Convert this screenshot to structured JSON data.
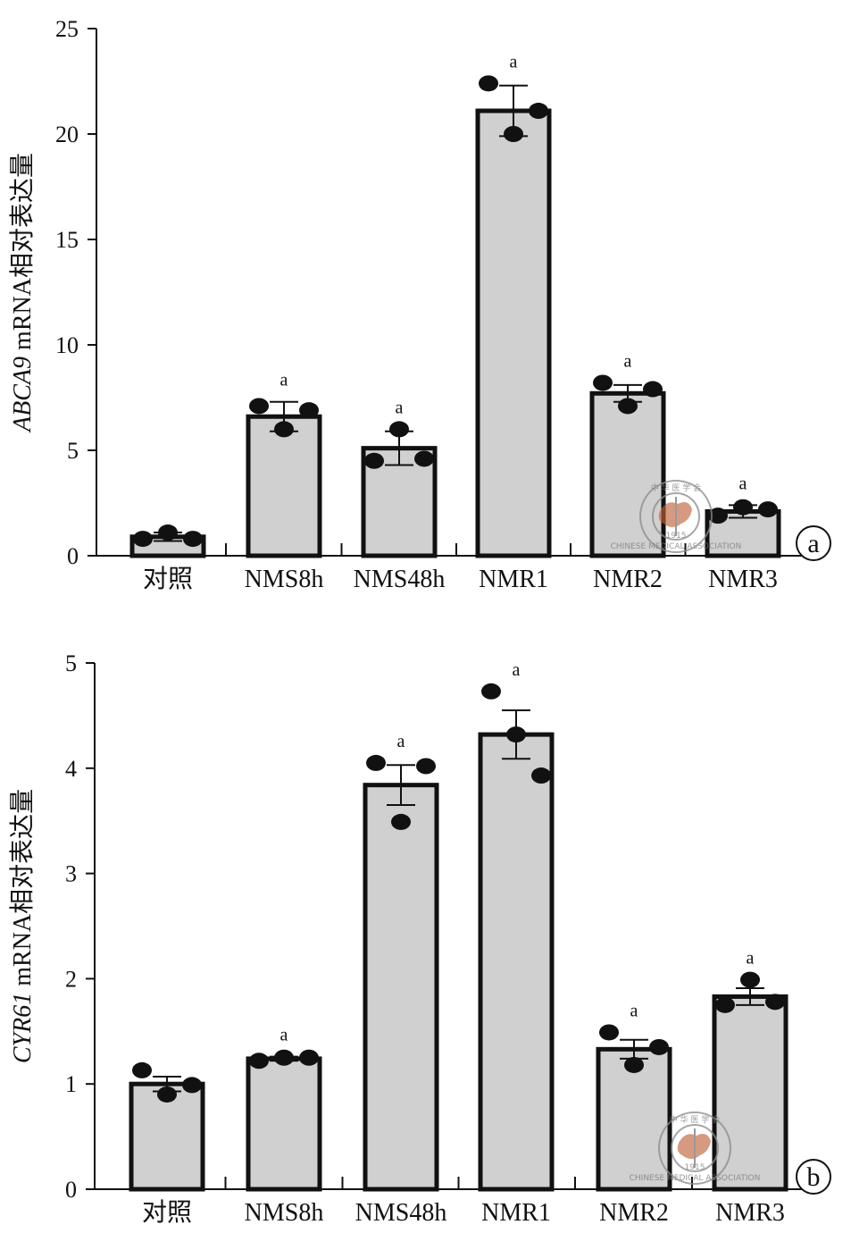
{
  "chart_data": [
    {
      "type": "bar",
      "panel": "a",
      "ylabel_italic": "ABCA9",
      "ylabel_rest": " mRNA相对表达量",
      "ylim": [
        0,
        25
      ],
      "yticks": [
        0,
        5,
        10,
        15,
        20,
        25
      ],
      "categories": [
        "对照",
        "NMS8h",
        "NMS48h",
        "NMR1",
        "NMR2",
        "NMR3"
      ],
      "values": [
        0.9,
        6.6,
        5.1,
        21.1,
        7.7,
        2.1
      ],
      "errors": [
        0.2,
        0.7,
        0.8,
        1.2,
        0.4,
        0.3
      ],
      "points": [
        [
          0.8,
          1.1,
          0.8
        ],
        [
          7.1,
          6.0,
          6.9
        ],
        [
          4.5,
          6.0,
          4.6
        ],
        [
          22.4,
          20.0,
          21.1
        ],
        [
          8.2,
          7.1,
          7.9
        ],
        [
          1.9,
          2.3,
          2.2
        ]
      ],
      "significance": [
        "",
        "a",
        "a",
        "a",
        "a",
        "a"
      ]
    },
    {
      "type": "bar",
      "panel": "b",
      "ylabel_italic": "CYR61",
      "ylabel_rest": " mRNA相对表达量",
      "ylim": [
        0,
        5
      ],
      "yticks": [
        0,
        1,
        2,
        3,
        4,
        5
      ],
      "categories": [
        "对照",
        "NMS8h",
        "NMS48h",
        "NMR1",
        "NMR2",
        "NMR3"
      ],
      "values": [
        1.0,
        1.24,
        3.84,
        4.32,
        1.33,
        1.83
      ],
      "errors": [
        0.07,
        0.02,
        0.19,
        0.23,
        0.09,
        0.08
      ],
      "points": [
        [
          1.13,
          0.9,
          0.99
        ],
        [
          1.22,
          1.25,
          1.25
        ],
        [
          4.05,
          3.49,
          4.02
        ],
        [
          4.73,
          4.32,
          3.93
        ],
        [
          1.49,
          1.18,
          1.35
        ],
        [
          1.75,
          1.99,
          1.78
        ]
      ],
      "significance": [
        "",
        "a",
        "a",
        "a",
        "a",
        "a"
      ]
    }
  ],
  "watermark": {
    "text_top": "中 华 医 学 会",
    "text_bottom": "CHINESE MEDICAL ASSOCIATION",
    "year": "1915"
  }
}
